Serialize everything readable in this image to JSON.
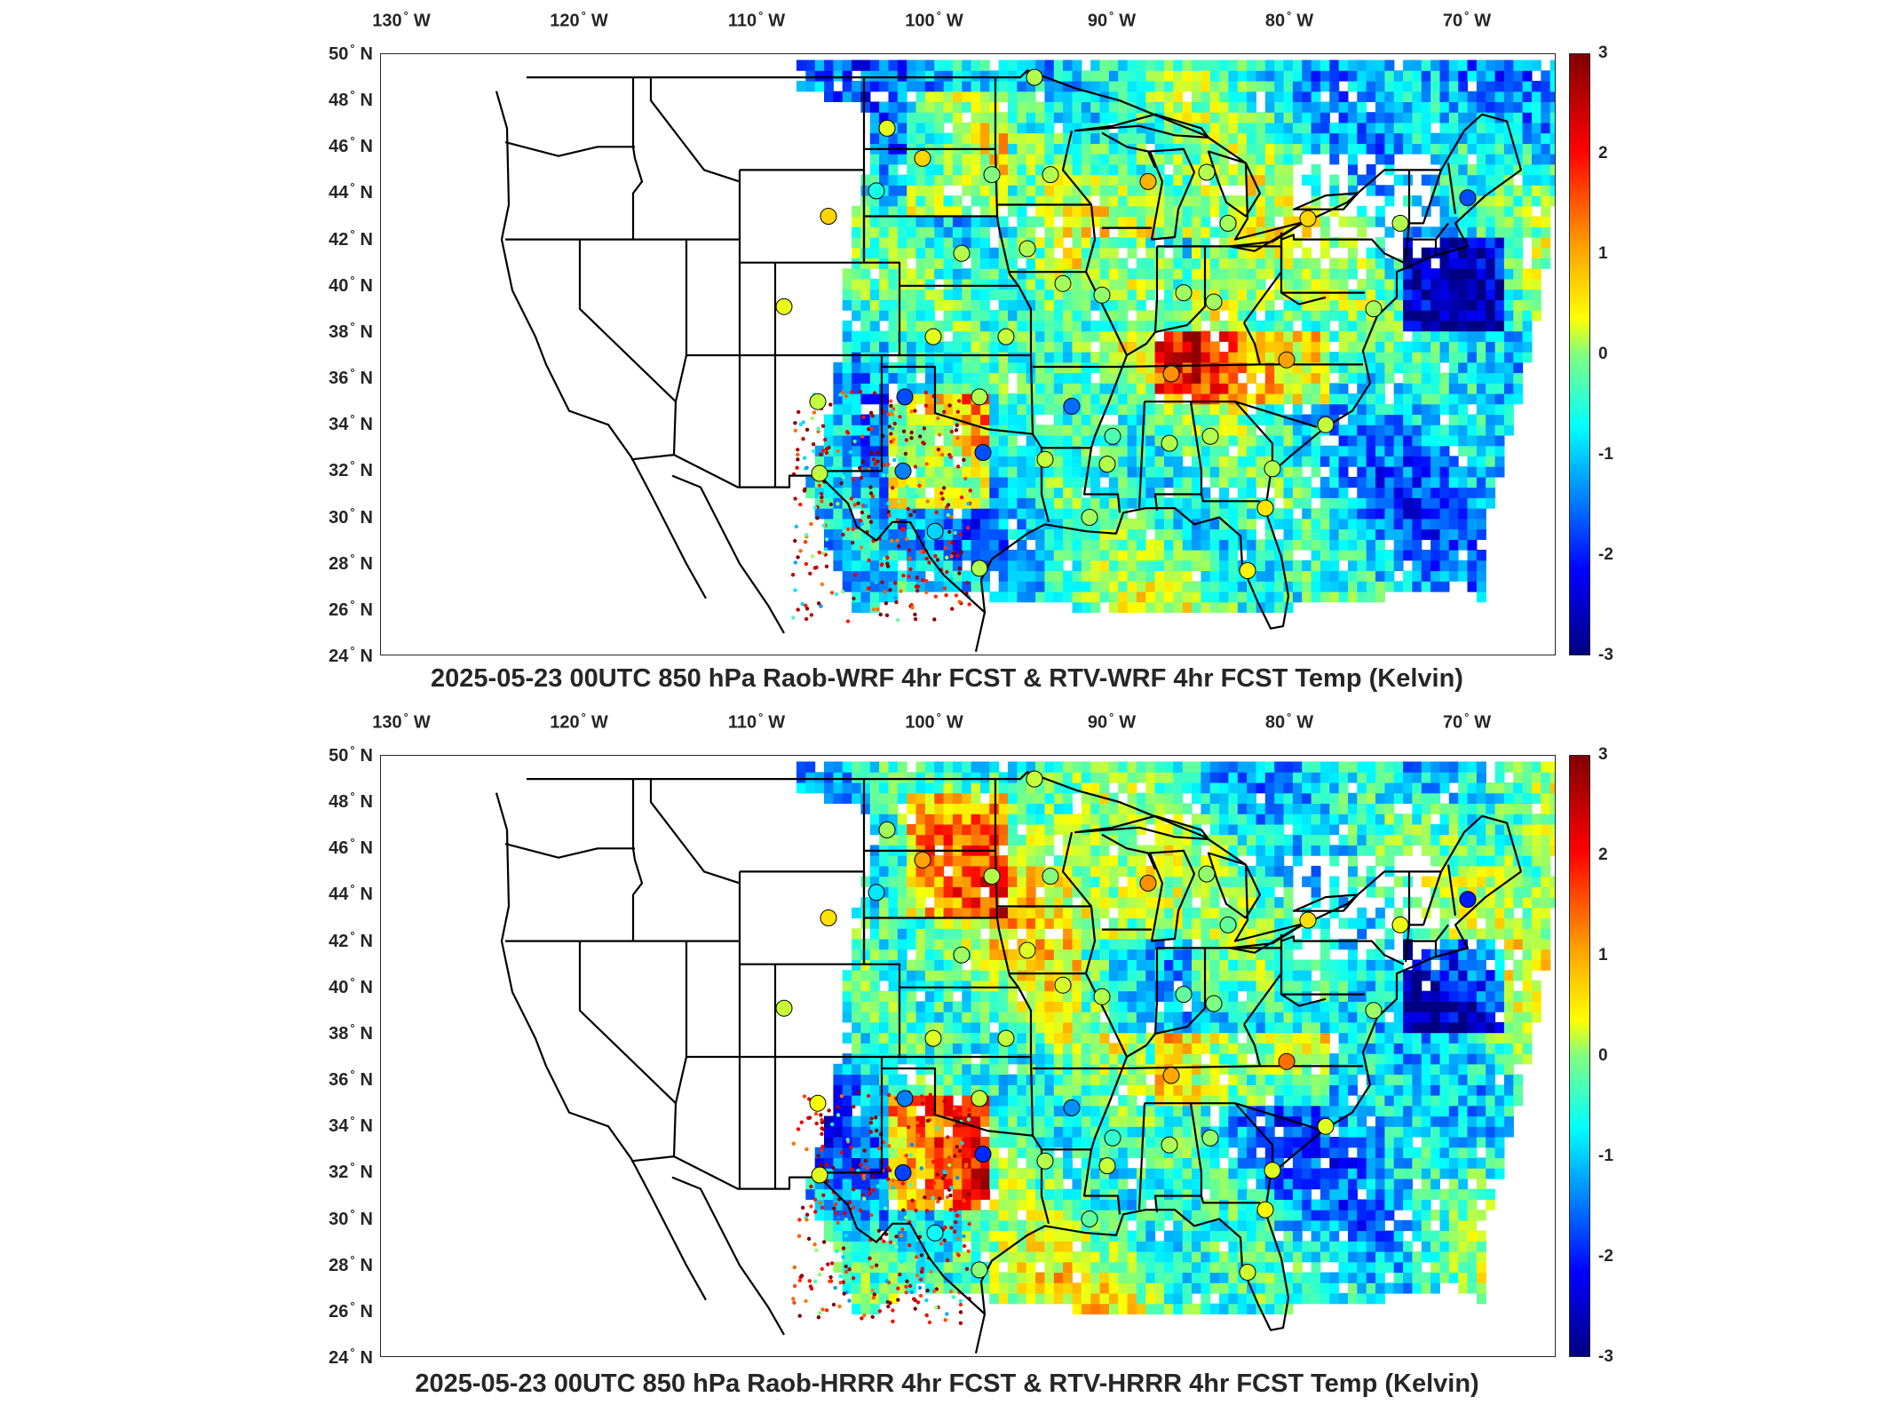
{
  "panels": [
    {
      "title": "2025-05-23 00UTC 850 hPa Raob-WRF 4hr FCST & RTV-WRF 4hr FCST Temp (Kelvin)",
      "map_type": "temperature difference field over CONUS with raob station circles",
      "colormap": "jet",
      "colorbar_range": [
        -3,
        3
      ]
    },
    {
      "title": "2025-05-23 00UTC 850 hPa Raob-HRRR 4hr FCST & RTV-HRRR 4hr FCST Temp (Kelvin)",
      "map_type": "temperature difference field over CONUS with raob station circles",
      "colormap": "jet",
      "colorbar_range": [
        -3,
        3
      ]
    }
  ],
  "lon_ticks": [
    "130",
    "120",
    "110",
    "100",
    "90",
    "80",
    "70"
  ],
  "lon_suffix": "W",
  "lat_ticks": [
    "50",
    "48",
    "46",
    "44",
    "42",
    "40",
    "38",
    "36",
    "34",
    "32",
    "30",
    "28",
    "26",
    "24"
  ],
  "lat_suffix": "N",
  "deg_symbol": "°",
  "colorbar_ticks": [
    "3",
    "2",
    "1",
    "0",
    "-1",
    "-2",
    "-3"
  ],
  "colors": {
    "boundary": "#000000",
    "frame": "#262626",
    "background": "#ffffff"
  }
}
